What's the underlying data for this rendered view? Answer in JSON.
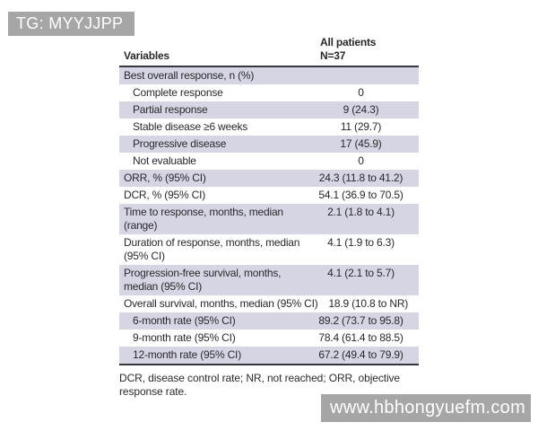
{
  "watermarks": {
    "top_left": "TG: MYYJJPP",
    "bottom_right": "www.hbhongyuefm.com"
  },
  "table": {
    "header": {
      "variables": "Variables",
      "group": "All patients\nN=37"
    },
    "rows": [
      {
        "label": "Best overall response, n (%)",
        "value": "",
        "indent": false,
        "shaded": true
      },
      {
        "label": "Complete response",
        "value": "0",
        "indent": true,
        "shaded": false
      },
      {
        "label": "Partial response",
        "value": "9 (24.3)",
        "indent": true,
        "shaded": true
      },
      {
        "label": "Stable disease ≥6 weeks",
        "value": "11 (29.7)",
        "indent": true,
        "shaded": false
      },
      {
        "label": "Progressive disease",
        "value": "17 (45.9)",
        "indent": true,
        "shaded": true
      },
      {
        "label": "Not evaluable",
        "value": "0",
        "indent": true,
        "shaded": false
      },
      {
        "label": "ORR, % (95% CI)",
        "value": "24.3 (11.8 to 41.2)",
        "indent": false,
        "shaded": true
      },
      {
        "label": "DCR, % (95% CI)",
        "value": "54.1 (36.9 to 70.5)",
        "indent": false,
        "shaded": false
      },
      {
        "label": "Time to response, months, median\n(range)",
        "value": "2.1 (1.8 to 4.1)",
        "indent": false,
        "shaded": true
      },
      {
        "label": "Duration of response, months, median\n(95% CI)",
        "value": "4.1 (1.9 to 6.3)",
        "indent": false,
        "shaded": false
      },
      {
        "label": "Progression-free survival, months,\nmedian (95% CI)",
        "value": "4.1 (2.1 to 5.7)",
        "indent": false,
        "shaded": true
      },
      {
        "label": "Overall survival, months, median (95% CI)",
        "value": "18.9 (10.8 to NR)",
        "indent": false,
        "shaded": false
      },
      {
        "label": "6-month rate (95% CI)",
        "value": "89.2 (73.7 to 95.8)",
        "indent": true,
        "shaded": true
      },
      {
        "label": "9-month rate (95% CI)",
        "value": "78.4 (61.4 to 88.5)",
        "indent": true,
        "shaded": false
      },
      {
        "label": "12-month rate (95% CI)",
        "value": "67.2 (49.4 to 79.9)",
        "indent": true,
        "shaded": true
      }
    ],
    "footnote": "DCR, disease control rate; NR, not reached; ORR, objective\nresponse rate."
  },
  "colors": {
    "row_shade": "#d6d5e3",
    "rule": "#36363c",
    "watermark_bg": "#a6a6a6",
    "watermark_text": "#ffffff",
    "text": "#29282c"
  }
}
